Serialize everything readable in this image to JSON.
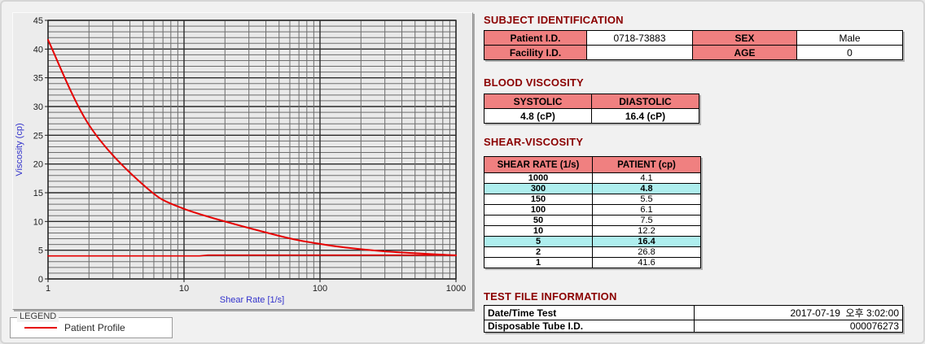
{
  "colors": {
    "section_title": "#8b0000",
    "table_header_pink": "#f08080",
    "highlight_cyan": "#aeeeee",
    "curve_red": "#e60000",
    "axis_label_blue": "#3333cc",
    "window_bg": "#f1f1f1",
    "panel_bg": "#ececec"
  },
  "chart": {
    "legend": {
      "title": "LEGEND",
      "entries": [
        {
          "label": "Patient Profile",
          "color": "#e60000"
        }
      ]
    }
  },
  "chart_data": {
    "type": "line",
    "title": "",
    "xlabel": "Shear Rate [1/s]",
    "ylabel": "Viscosity (cp)",
    "x_scale": "log",
    "xlim": [
      1,
      1000
    ],
    "ylim": [
      0,
      45
    ],
    "x_major_ticks": [
      1,
      10,
      100,
      1000
    ],
    "y_tick_step": 5,
    "y_minor_step": 1,
    "grid": true,
    "legend_position": "bottom-left-outside",
    "series": [
      {
        "name": "Patient Profile",
        "color": "#e60000",
        "smooth": true,
        "points": [
          [
            1,
            41.6
          ],
          [
            2,
            26.8
          ],
          [
            5,
            16.4
          ],
          [
            10,
            12.2
          ],
          [
            50,
            7.5
          ],
          [
            100,
            6.1
          ],
          [
            150,
            5.5
          ],
          [
            300,
            4.8
          ],
          [
            1000,
            4.1
          ]
        ]
      },
      {
        "name": "unlabeled-flat-line (~4 cP)",
        "color": "#e60000",
        "smooth": false,
        "points": [
          [
            1,
            4.0
          ],
          [
            13,
            4.0
          ],
          [
            15,
            4.15
          ],
          [
            1000,
            4.15
          ]
        ]
      }
    ]
  },
  "sections": {
    "subject": {
      "title": "SUBJECT IDENTIFICATION",
      "rows": [
        {
          "label1": "Patient I.D.",
          "value1": "0718-73883",
          "label2": "SEX",
          "value2": "Male"
        },
        {
          "label1": "Facility I.D.",
          "value1": "",
          "label2": "AGE",
          "value2": "0"
        }
      ]
    },
    "blood": {
      "title": "BLOOD VISCOSITY",
      "headers": [
        "SYSTOLIC",
        "DIASTOLIC"
      ],
      "values": [
        "4.8 (cP)",
        "16.4 (cP)"
      ]
    },
    "shear": {
      "title": "SHEAR-VISCOSITY",
      "headers": [
        "SHEAR RATE (1/s)",
        "PATIENT (cp)"
      ],
      "rows": [
        {
          "rate": "1000",
          "patient": "4.1",
          "highlight": false
        },
        {
          "rate": "300",
          "patient": "4.8",
          "highlight": true
        },
        {
          "rate": "150",
          "patient": "5.5",
          "highlight": false
        },
        {
          "rate": "100",
          "patient": "6.1",
          "highlight": false
        },
        {
          "rate": "50",
          "patient": "7.5",
          "highlight": false
        },
        {
          "rate": "10",
          "patient": "12.2",
          "highlight": false
        },
        {
          "rate": "5",
          "patient": "16.4",
          "highlight": true
        },
        {
          "rate": "2",
          "patient": "26.8",
          "highlight": false
        },
        {
          "rate": "1",
          "patient": "41.6",
          "highlight": false
        }
      ]
    },
    "testfile": {
      "title": "TEST FILE INFORMATION",
      "rows": [
        {
          "label": "Date/Time Test",
          "value": "2017-07-19  오후 3:02:00"
        },
        {
          "label": "Disposable Tube I.D.",
          "value": "000076273"
        }
      ]
    }
  }
}
